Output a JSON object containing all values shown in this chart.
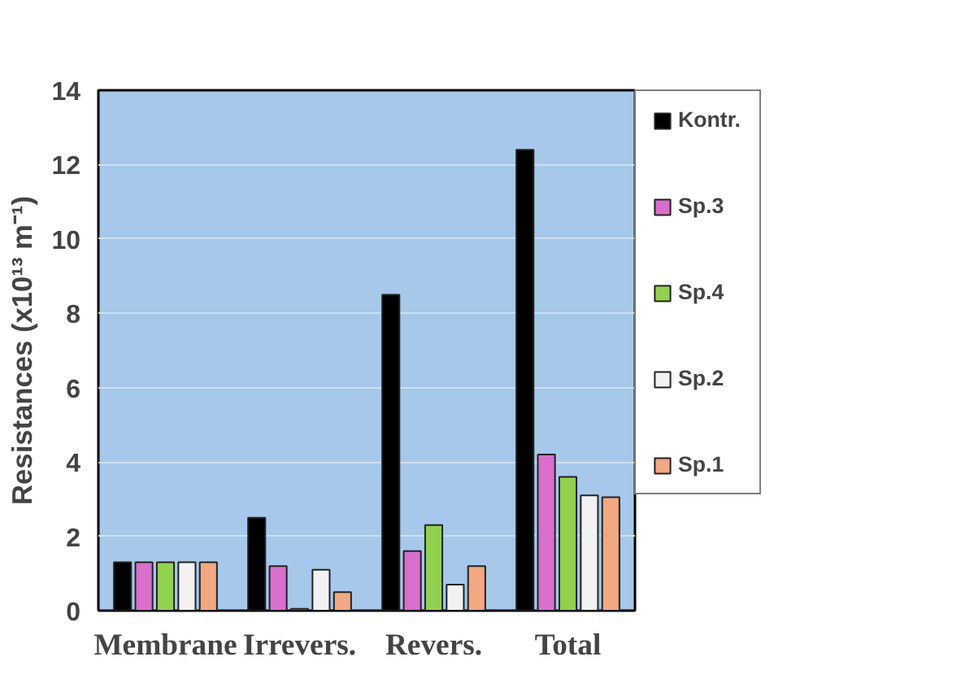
{
  "chart_data": {
    "type": "bar",
    "ylabel": "Resistances (x10¹³ m⁻¹)",
    "categories": [
      "Membrane",
      "Irrevers.",
      "Revers.",
      "Total"
    ],
    "series": [
      {
        "name": "Kontr.",
        "color": "#000000",
        "values": [
          1.3,
          2.5,
          8.5,
          12.4
        ]
      },
      {
        "name": "Sp.3",
        "color": "#d86fcc",
        "values": [
          1.3,
          1.2,
          1.6,
          4.2
        ]
      },
      {
        "name": "Sp.4",
        "color": "#92d050",
        "values": [
          1.3,
          0.05,
          2.3,
          3.6
        ]
      },
      {
        "name": "Sp.2",
        "color": "#f2f2f2",
        "values": [
          1.3,
          1.1,
          0.7,
          3.1
        ]
      },
      {
        "name": "Sp.1",
        "color": "#f2a882",
        "values": [
          1.3,
          0.5,
          1.2,
          3.05
        ]
      }
    ],
    "ylim": [
      0,
      14
    ],
    "yticks": [
      0,
      2,
      4,
      6,
      8,
      10,
      12,
      14
    ],
    "grid": "y",
    "legend": "right"
  }
}
